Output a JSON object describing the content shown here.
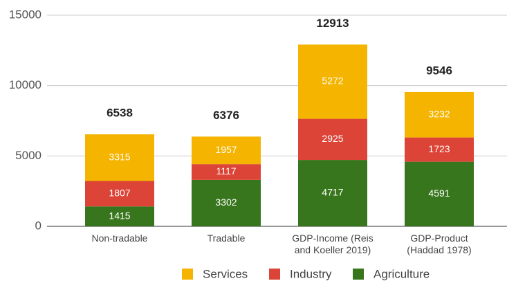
{
  "chart_data": {
    "type": "stacked_bar",
    "categories": [
      "Non-tradable",
      "Tradable",
      "GDP-Income (Reis and Koeller 2019)",
      "GDP-Product (Haddad 1978)"
    ],
    "series": [
      {
        "name": "Agriculture",
        "color": "#38761d",
        "values": [
          1415,
          3302,
          4717,
          4591
        ]
      },
      {
        "name": "Industry",
        "color": "#db4437",
        "values": [
          1807,
          1117,
          2925,
          1723
        ]
      },
      {
        "name": "Services",
        "color": "#f4b400",
        "values": [
          3315,
          1957,
          5272,
          3232
        ]
      }
    ],
    "totals": [
      6538,
      6376,
      12913,
      9546
    ],
    "ylim": [
      0,
      15000
    ],
    "yticks": [
      0,
      5000,
      10000,
      15000
    ],
    "grid": true,
    "legend": "bottom"
  }
}
